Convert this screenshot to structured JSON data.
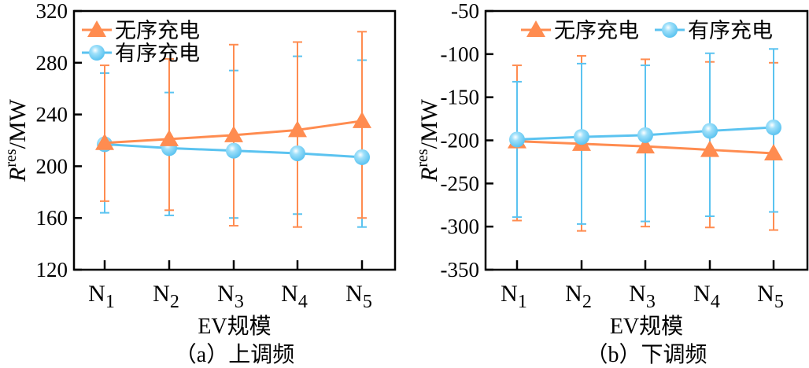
{
  "colors": {
    "unordered": "#FF8C50",
    "ordered": "#5BC3F0",
    "axis": "#000000"
  },
  "chart_data": [
    {
      "type": "line",
      "caption": "（a）上调频",
      "xlabel": "EV规模",
      "ylabel": "R",
      "ylabel_sup": "res",
      "ylabel_unit": "/MW",
      "categories": [
        "N",
        "N",
        "N",
        "N",
        "N"
      ],
      "category_subs": [
        "1",
        "2",
        "3",
        "4",
        "5"
      ],
      "ylim": [
        120,
        320
      ],
      "yticks": [
        120,
        160,
        200,
        240,
        280,
        320
      ],
      "legend": "top-left-stacked",
      "grid": false,
      "series": [
        {
          "name": "无序充电",
          "marker": "triangle",
          "values": [
            218,
            221,
            224,
            228,
            235
          ],
          "err_upper": [
            278,
            283,
            294,
            296,
            304
          ],
          "err_lower": [
            173,
            166,
            154,
            153,
            160
          ]
        },
        {
          "name": "有序充电",
          "marker": "circle",
          "values": [
            217,
            214,
            212,
            210,
            207
          ],
          "err_upper": [
            272,
            257,
            274,
            285,
            282
          ],
          "err_lower": [
            164,
            162,
            160,
            163,
            153
          ]
        }
      ]
    },
    {
      "type": "line",
      "caption": "（b）下调频",
      "xlabel": "EV规模",
      "ylabel": "R",
      "ylabel_sup": "res",
      "ylabel_unit": "/MW",
      "categories": [
        "N",
        "N",
        "N",
        "N",
        "N"
      ],
      "category_subs": [
        "1",
        "2",
        "3",
        "4",
        "5"
      ],
      "ylim": [
        -350,
        -50
      ],
      "yticks": [
        -350,
        -300,
        -250,
        -200,
        -150,
        -100,
        -50
      ],
      "legend": "top-row",
      "grid": false,
      "series": [
        {
          "name": "无序充电",
          "marker": "triangle",
          "values": [
            -201,
            -204,
            -207,
            -211,
            -215
          ],
          "err_upper": [
            -113,
            -102,
            -106,
            -109,
            -110
          ],
          "err_lower": [
            -293,
            -305,
            -300,
            -301,
            -304
          ]
        },
        {
          "name": "有序充电",
          "marker": "circle",
          "values": [
            -199,
            -196,
            -194,
            -189,
            -185
          ],
          "err_upper": [
            -132,
            -111,
            -113,
            -99,
            -94
          ],
          "err_lower": [
            -289,
            -297,
            -294,
            -288,
            -283
          ]
        }
      ]
    }
  ]
}
